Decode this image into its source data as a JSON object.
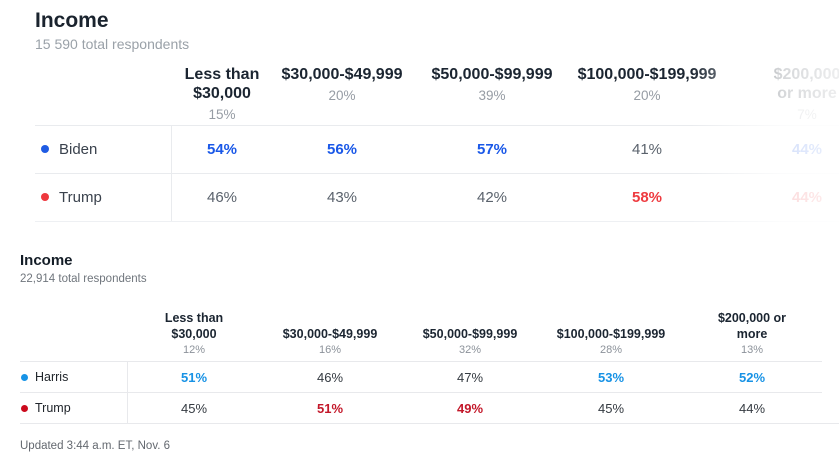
{
  "chart_data": [
    {
      "type": "table",
      "title": "Income",
      "subtitle": "15 590 total respondents",
      "colors": {
        "blue": "#1a58e8",
        "red": "#ee3b40",
        "plain": "#5a626c"
      },
      "columns": [
        {
          "label": "Less than\n$30,000",
          "share": "15%"
        },
        {
          "label": "$30,000-$49,999",
          "share": "20%"
        },
        {
          "label": "$50,000-$99,999",
          "share": "39%"
        },
        {
          "label": "$100,000-$199,999",
          "share": "20%"
        },
        {
          "label": "$200,000\nor more",
          "share": "7%"
        }
      ],
      "rows": [
        {
          "candidate": "Biden",
          "dot_color": "#1f5be3",
          "values": [
            {
              "text": "54%",
              "emphasis": "blue"
            },
            {
              "text": "56%",
              "emphasis": "blue"
            },
            {
              "text": "57%",
              "emphasis": "blue"
            },
            {
              "text": "41%",
              "emphasis": "plain"
            },
            {
              "text": "44%",
              "emphasis": "blue"
            }
          ]
        },
        {
          "candidate": "Trump",
          "dot_color": "#ee383e",
          "values": [
            {
              "text": "46%",
              "emphasis": "plain"
            },
            {
              "text": "43%",
              "emphasis": "plain"
            },
            {
              "text": "42%",
              "emphasis": "plain"
            },
            {
              "text": "58%",
              "emphasis": "red"
            },
            {
              "text": "44%",
              "emphasis": "red"
            }
          ]
        }
      ]
    },
    {
      "type": "table",
      "title": "Income",
      "subtitle": "22,914 total respondents",
      "colors": {
        "blue": "#1792e5",
        "red": "#c3182a",
        "plain": "#343a41"
      },
      "columns": [
        {
          "label": "Less than\n$30,000",
          "share": "12%"
        },
        {
          "label": "$30,000-$49,999",
          "share": "16%"
        },
        {
          "label": "$50,000-$99,999",
          "share": "32%"
        },
        {
          "label": "$100,000-$199,999",
          "share": "28%"
        },
        {
          "label": "$200,000 or\nmore",
          "share": "13%"
        }
      ],
      "rows": [
        {
          "candidate": "Harris",
          "dot_color": "#1793e6",
          "values": [
            {
              "text": "51%",
              "emphasis": "blue"
            },
            {
              "text": "46%",
              "emphasis": "plain"
            },
            {
              "text": "47%",
              "emphasis": "plain"
            },
            {
              "text": "53%",
              "emphasis": "blue"
            },
            {
              "text": "52%",
              "emphasis": "blue"
            }
          ]
        },
        {
          "candidate": "Trump",
          "dot_color": "#cb0a1d",
          "values": [
            {
              "text": "45%",
              "emphasis": "plain"
            },
            {
              "text": "51%",
              "emphasis": "red"
            },
            {
              "text": "49%",
              "emphasis": "red"
            },
            {
              "text": "45%",
              "emphasis": "plain"
            },
            {
              "text": "44%",
              "emphasis": "plain"
            }
          ]
        }
      ]
    }
  ],
  "footer": "Updated 3:44 a.m. ET, Nov. 6"
}
